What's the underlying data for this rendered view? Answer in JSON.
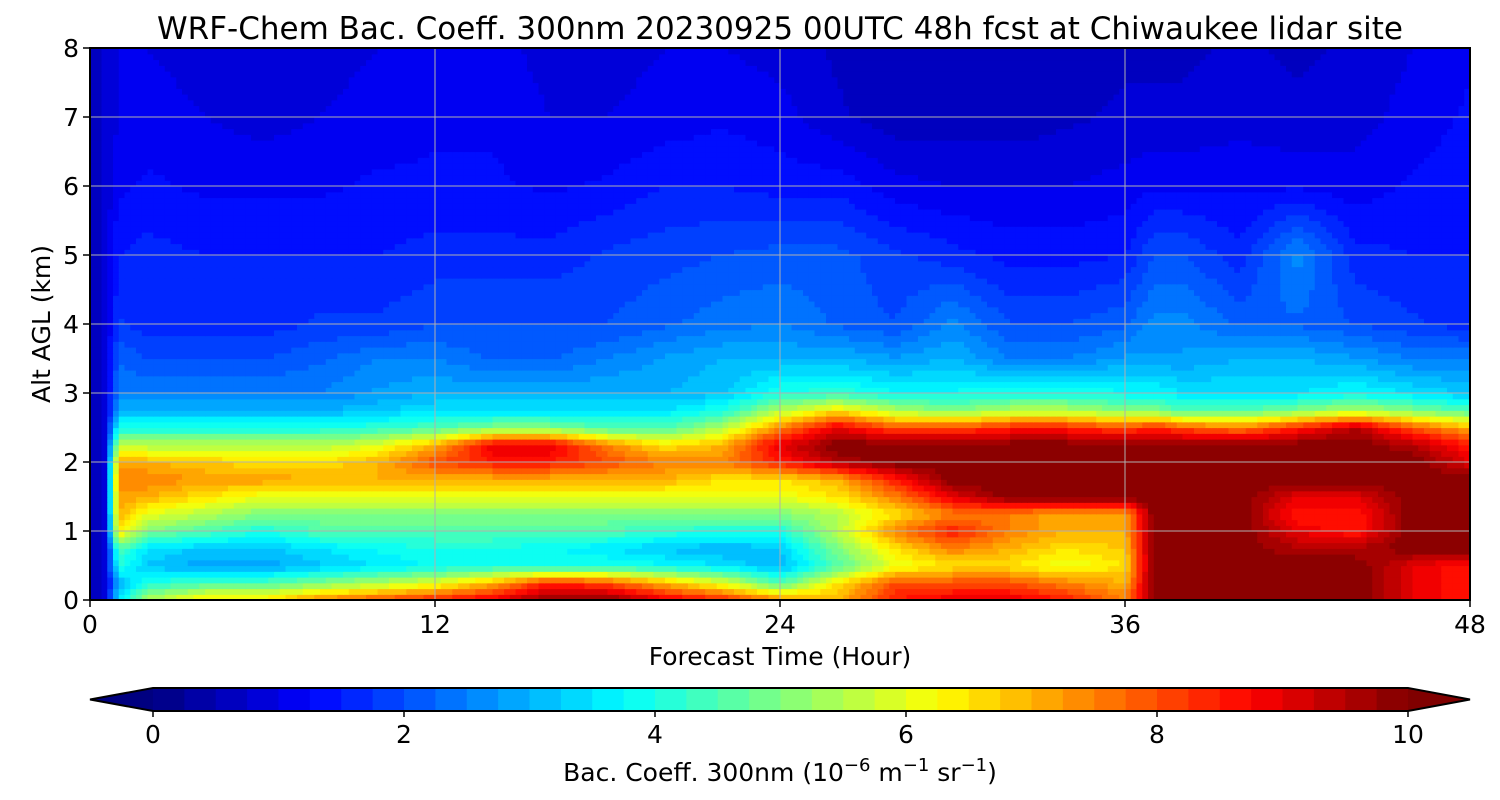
{
  "chart_data": {
    "type": "heatmap",
    "title": "WRF-Chem Bac. Coeff. 300nm  20230925 00UTC 48h fcst at Chiwaukee lidar site",
    "xlabel": "Forecast Time (Hour)",
    "ylabel": "Alt AGL (km)",
    "xlim": [
      0,
      48
    ],
    "ylim": [
      0,
      8
    ],
    "xticks": [
      0,
      12,
      24,
      36,
      48
    ],
    "yticks": [
      0,
      1,
      2,
      3,
      4,
      5,
      6,
      7,
      8
    ],
    "grid": true,
    "colorbar": {
      "label_main": "Bac. Coeff. 300nm  (10",
      "label_exp1": "−6",
      "label_mid": " m",
      "label_exp2": "−1",
      "label_end": " sr",
      "label_exp3": "−1",
      "label_close": ")",
      "min": 0,
      "max": 10,
      "ticks": [
        0,
        2,
        4,
        6,
        8,
        10
      ],
      "extend": "both",
      "colormap": "jet"
    },
    "x": [
      0,
      0.5,
      1,
      2,
      4,
      6,
      8,
      10,
      12,
      14,
      16,
      18,
      20,
      22,
      24,
      26,
      28,
      30,
      32,
      34,
      36,
      37,
      38,
      40,
      42,
      44,
      46,
      48
    ],
    "y": [
      0,
      0.25,
      0.5,
      0.75,
      1,
      1.25,
      1.5,
      1.75,
      2,
      2.25,
      2.5,
      2.75,
      3,
      3.5,
      4,
      5,
      6,
      7,
      8
    ],
    "z": [
      [
        0.5,
        0.8,
        3.5,
        5.5,
        6.5,
        6.5,
        7.5,
        8,
        8.5,
        9,
        10,
        10,
        9,
        8.5,
        7.5,
        7,
        8.5,
        9,
        9,
        8.5,
        7.5,
        10,
        10,
        10,
        10,
        10,
        9,
        8.5
      ],
      [
        0.5,
        0.8,
        3.0,
        4.0,
        4.5,
        4.5,
        5.0,
        5.5,
        6.0,
        7,
        8.5,
        8,
        7,
        6,
        4.5,
        6.5,
        8,
        8,
        8,
        7.5,
        7,
        10,
        10,
        10,
        10,
        10,
        9,
        8.5
      ],
      [
        0.5,
        0.8,
        4.0,
        3.2,
        2.8,
        2.8,
        3.2,
        3.5,
        3.8,
        4.0,
        4.0,
        4.0,
        3.8,
        3.5,
        3.0,
        4.5,
        6.0,
        6.5,
        6.5,
        6.0,
        6.5,
        10,
        10,
        10,
        10,
        10,
        9,
        8.5
      ],
      [
        0.5,
        0.8,
        4.5,
        3.5,
        3.2,
        3.2,
        3.5,
        3.8,
        4.0,
        4.0,
        3.8,
        3.5,
        3.2,
        3.0,
        3.2,
        5.0,
        6.5,
        7.5,
        7.0,
        6.5,
        6.8,
        10,
        10,
        10,
        9.5,
        9.5,
        10,
        10
      ],
      [
        0.5,
        0.8,
        6.5,
        5.0,
        4.5,
        4.0,
        4.5,
        4.5,
        4.5,
        4.5,
        4.5,
        4.5,
        4.2,
        4.0,
        4.0,
        5.5,
        7.5,
        8.5,
        7.5,
        7.0,
        7.0,
        10,
        10,
        10,
        9,
        8.5,
        10,
        10
      ],
      [
        0.5,
        0.8,
        7.0,
        6.0,
        5.5,
        5.0,
        5.0,
        5.0,
        5.0,
        5.0,
        5.0,
        5.0,
        5.0,
        5.0,
        5.0,
        5.5,
        6.5,
        7.5,
        7.5,
        7.0,
        7.0,
        10,
        10,
        10,
        8.5,
        8.5,
        10,
        10
      ],
      [
        0.5,
        0.8,
        7.2,
        7.0,
        6.5,
        6.0,
        6.0,
        6.0,
        6.0,
        6.0,
        6.0,
        6.0,
        6.0,
        6.0,
        6.0,
        6.5,
        7.5,
        9,
        10,
        10,
        10,
        10,
        10,
        10,
        9,
        9,
        10,
        10
      ],
      [
        0.5,
        0.8,
        7.5,
        7.5,
        7.2,
        7.2,
        7.0,
        7.0,
        7.0,
        7.0,
        7.0,
        7.0,
        7.0,
        6.5,
        6.5,
        7.0,
        8.5,
        10,
        10,
        10,
        10,
        10,
        10,
        10,
        10,
        10,
        10,
        10
      ],
      [
        0.5,
        0.8,
        7.0,
        7.0,
        6.8,
        6.5,
        6.5,
        7.0,
        8.0,
        8.5,
        8.5,
        8.0,
        7.5,
        7.5,
        8.5,
        9.5,
        10,
        10,
        10,
        10,
        10,
        10,
        10,
        10,
        10,
        10,
        10,
        9
      ],
      [
        0.5,
        0.8,
        5.5,
        5.5,
        5.5,
        5.5,
        5.5,
        6.0,
        7.0,
        9.0,
        9.0,
        7.5,
        6.5,
        7.0,
        9.0,
        10,
        10,
        10,
        10,
        10,
        10,
        10,
        10,
        10,
        10,
        10,
        9.5,
        8.5
      ],
      [
        0.5,
        0.8,
        4.0,
        4.0,
        4.0,
        4.0,
        4.0,
        4.2,
        4.5,
        5.0,
        5.0,
        4.5,
        4.5,
        5.5,
        7.5,
        9.0,
        8.0,
        8.0,
        8.5,
        8.5,
        8.0,
        8.5,
        8.0,
        7.5,
        8.5,
        9.5,
        8.0,
        7.0
      ],
      [
        0.5,
        0.8,
        3.0,
        3.0,
        3.0,
        3.0,
        3.0,
        3.2,
        3.5,
        3.5,
        3.5,
        3.5,
        3.5,
        4.0,
        5.5,
        6.5,
        5.5,
        5.0,
        5.5,
        5.5,
        5.0,
        5.0,
        4.5,
        4.5,
        5.0,
        5.5,
        5.0,
        4.5
      ],
      [
        0.5,
        0.8,
        2.5,
        2.5,
        2.5,
        2.5,
        2.5,
        2.8,
        3.0,
        3.0,
        3.0,
        3.0,
        3.0,
        3.2,
        4.0,
        4.2,
        3.8,
        3.8,
        4.0,
        4.0,
        3.8,
        3.8,
        3.5,
        3.5,
        3.5,
        3.8,
        3.5,
        3.2
      ],
      [
        0.5,
        0.8,
        2.2,
        2.0,
        2.0,
        2.0,
        2.2,
        2.5,
        2.5,
        2.2,
        2.2,
        2.5,
        2.8,
        3.0,
        3.0,
        3.0,
        2.8,
        3.0,
        2.5,
        2.5,
        2.8,
        2.8,
        2.8,
        3.0,
        3.0,
        2.8,
        2.5,
        2.5
      ],
      [
        0.5,
        0.8,
        1.8,
        1.6,
        1.6,
        1.6,
        1.8,
        1.8,
        2.0,
        2.0,
        2.0,
        2.0,
        2.2,
        2.4,
        2.5,
        2.2,
        2.0,
        2.6,
        2.0,
        2.0,
        2.2,
        2.6,
        2.6,
        2.2,
        2.2,
        2.0,
        1.8,
        1.6
      ],
      [
        0.5,
        0.8,
        1.5,
        1.6,
        1.5,
        1.5,
        1.5,
        1.5,
        1.6,
        1.6,
        1.6,
        1.8,
        1.9,
        2.0,
        2.1,
        2.1,
        1.8,
        1.6,
        1.4,
        1.4,
        1.5,
        2.0,
        2.0,
        1.6,
        2.6,
        1.6,
        1.5,
        1.5
      ],
      [
        0.5,
        0.8,
        1.2,
        1.3,
        1.2,
        1.2,
        1.2,
        1.3,
        1.3,
        1.3,
        1.2,
        1.3,
        1.5,
        1.5,
        1.4,
        1.4,
        1.1,
        1.0,
        1.0,
        1.0,
        1.1,
        1.2,
        1.2,
        1.2,
        1.2,
        1.1,
        1.3,
        1.4
      ],
      [
        0.5,
        0.8,
        1.0,
        1.1,
        1.0,
        0.9,
        1.0,
        1.1,
        1.2,
        1.2,
        1.0,
        1.0,
        1.1,
        1.2,
        1.1,
        0.8,
        0.6,
        0.6,
        0.6,
        0.7,
        0.8,
        0.8,
        0.8,
        0.9,
        0.8,
        0.9,
        1.1,
        1.3
      ],
      [
        0.5,
        0.8,
        1.0,
        1.0,
        0.9,
        0.8,
        0.9,
        1.0,
        1.1,
        1.1,
        0.9,
        0.9,
        1.0,
        1.0,
        0.9,
        0.7,
        0.5,
        0.5,
        0.5,
        0.6,
        0.7,
        0.7,
        0.7,
        0.8,
        0.7,
        0.8,
        1.0,
        1.2
      ]
    ]
  }
}
